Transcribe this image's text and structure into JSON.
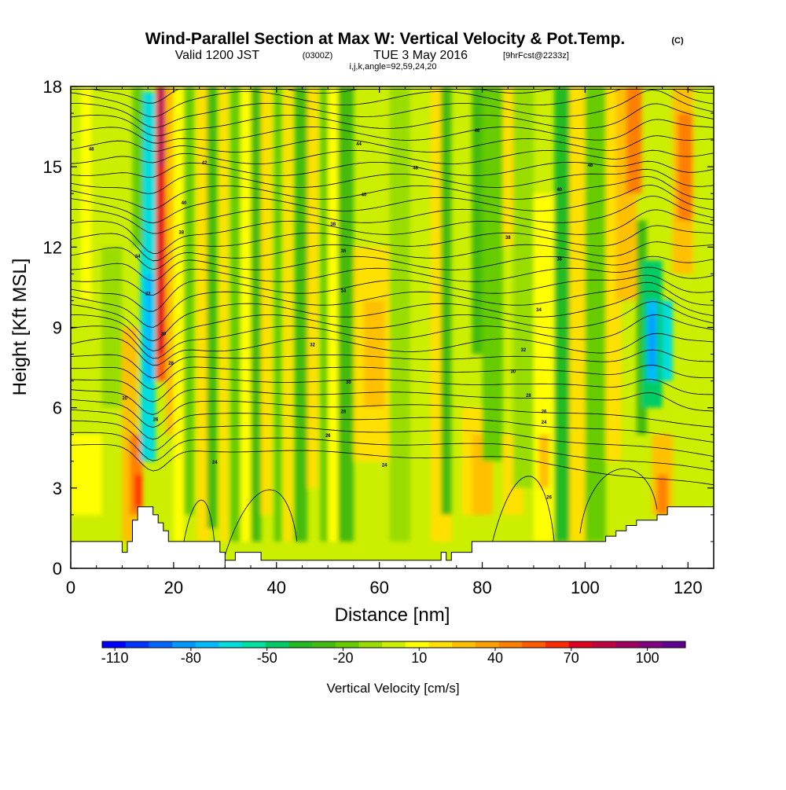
{
  "chart_data": {
    "type": "heatmap",
    "title": "Wind-Parallel Section at Max W: Vertical Velocity & Pot.Temp.",
    "title_mark": "(C)",
    "subtitle_prefix": "Valid 1200 JST",
    "subtitle_zulu": "(0300Z)",
    "subtitle_date": "TUE 3 May 2016",
    "subtitle_fcst": "[9hrFcst@2233z]",
    "subtitle2": "i,j,k,angle=92,59,24,20",
    "xlabel": "Distance [nm]",
    "ylabel": "Height [Kft MSL]",
    "xlim": [
      0,
      125
    ],
    "ylim": [
      0,
      18
    ],
    "xticks": [
      "0",
      "20",
      "40",
      "60",
      "80",
      "100",
      "120"
    ],
    "yticks": [
      "0",
      "3",
      "6",
      "9",
      "12",
      "15",
      "18"
    ],
    "colorbar": {
      "label": "Vertical Velocity [cm/s]",
      "tick_labels": [
        "-110",
        "-80",
        "-50",
        "-20",
        "10",
        "40",
        "70",
        "100"
      ],
      "tick_values": [
        -110,
        -80,
        -50,
        -20,
        10,
        40,
        70,
        100
      ],
      "min": -115,
      "max": 115,
      "colors": [
        "#0000ff",
        "#0033ff",
        "#0066ff",
        "#0099ff",
        "#00bbff",
        "#00dddd",
        "#00e0a0",
        "#00cc66",
        "#22bb22",
        "#44bb11",
        "#66cc00",
        "#99dd00",
        "#ccee00",
        "#ffff00",
        "#ffe000",
        "#ffc000",
        "#ffa000",
        "#ff8000",
        "#ff5a00",
        "#ff2a00",
        "#e00020",
        "#c00040",
        "#a00060",
        "#800080",
        "#600090"
      ]
    },
    "contour_labels": [
      {
        "text": "44",
        "x": 56,
        "y": 15.8
      },
      {
        "text": "48",
        "x": 4,
        "y": 15.6
      },
      {
        "text": "48",
        "x": 67,
        "y": 14.9
      },
      {
        "text": "48",
        "x": 101,
        "y": 15.0
      },
      {
        "text": "46",
        "x": 79,
        "y": 16.3
      },
      {
        "text": "42",
        "x": 26,
        "y": 15.1
      },
      {
        "text": "40",
        "x": 22,
        "y": 13.6
      },
      {
        "text": "40",
        "x": 57,
        "y": 13.9
      },
      {
        "text": "40",
        "x": 95,
        "y": 14.1
      },
      {
        "text": "38",
        "x": 21.5,
        "y": 12.5
      },
      {
        "text": "38",
        "x": 51,
        "y": 12.8
      },
      {
        "text": "38",
        "x": 85,
        "y": 12.3
      },
      {
        "text": "36",
        "x": 53,
        "y": 11.8
      },
      {
        "text": "36",
        "x": 95,
        "y": 11.5
      },
      {
        "text": "34",
        "x": 13,
        "y": 11.6
      },
      {
        "text": "34",
        "x": 53,
        "y": 10.3
      },
      {
        "text": "34",
        "x": 91,
        "y": 9.6
      },
      {
        "text": "32",
        "x": 15,
        "y": 10.2
      },
      {
        "text": "32",
        "x": 47,
        "y": 8.3
      },
      {
        "text": "32",
        "x": 88,
        "y": 8.1
      },
      {
        "text": "30",
        "x": 18,
        "y": 8.7
      },
      {
        "text": "30",
        "x": 54,
        "y": 6.9
      },
      {
        "text": "30",
        "x": 86,
        "y": 7.3
      },
      {
        "text": "30",
        "x": 10.5,
        "y": 6.3
      },
      {
        "text": "28",
        "x": 19.5,
        "y": 7.6
      },
      {
        "text": "28",
        "x": 53,
        "y": 5.8
      },
      {
        "text": "28",
        "x": 89,
        "y": 6.4
      },
      {
        "text": "26",
        "x": 16.5,
        "y": 5.5
      },
      {
        "text": "26",
        "x": 50,
        "y": 4.9
      },
      {
        "text": "26",
        "x": 92,
        "y": 5.8
      },
      {
        "text": "24",
        "x": 28,
        "y": 3.9
      },
      {
        "text": "24",
        "x": 61,
        "y": 3.8
      },
      {
        "text": "24",
        "x": 92,
        "y": 5.4
      },
      {
        "text": "26",
        "x": 93,
        "y": 2.6
      }
    ]
  }
}
